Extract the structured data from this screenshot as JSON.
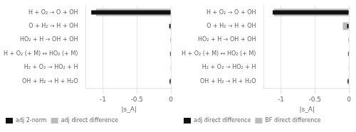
{
  "chart_data": [
    {
      "type": "bar",
      "orientation": "horizontal",
      "categories": [
        "H + O₂ → O + OH",
        "O + H₂ → H + OH",
        "HO₂ + H → OH + OH",
        "H + O₂ (+ M) ↔ HO₂ (+ M)",
        "H₂ + O₂ → HO₂ + H",
        "OH + H₂ → H + H₂O"
      ],
      "series": [
        {
          "name": "adj 2-norm",
          "color": "#111111",
          "values": [
            -1.17,
            -0.025,
            -0.008,
            -0.013,
            -0.006,
            -0.02
          ]
        },
        {
          "name": "adj direct difference",
          "color": "#bbbbbb",
          "values": [
            -1.1,
            -0.018,
            -0.006,
            -0.009,
            -0.004,
            -0.014
          ]
        }
      ],
      "xlabel": "|s_A|",
      "xlim": [
        -1.25,
        0.02
      ],
      "xticks": [
        -1,
        -0.5,
        0
      ],
      "grid": true,
      "legend": "lower left"
    },
    {
      "type": "bar",
      "orientation": "horizontal",
      "categories": [
        "H + O₂ → O + OH",
        "O + H₂ → H + OH",
        "HO₂ + H → OH + OH",
        "H + O₂ (+ M) ↔ HO₂ (+ M)",
        "H₂ + O₂ → HO₂ + H",
        "OH + H₂ → H + H₂O"
      ],
      "series": [
        {
          "name": "adj direct difference",
          "color": "#111111",
          "values": [
            -1.12,
            -0.028,
            -0.008,
            -0.013,
            -0.006,
            -0.02
          ]
        },
        {
          "name": "BF direct difference",
          "color": "#bbbbbb",
          "values": [
            -1.1,
            -0.09,
            -0.006,
            -0.009,
            -0.004,
            -0.014
          ]
        }
      ],
      "xlabel": "|s_A|",
      "xlim": [
        -1.25,
        0.02
      ],
      "xticks": [
        -1,
        -0.5,
        0
      ],
      "grid": true,
      "legend": "lower left"
    }
  ]
}
